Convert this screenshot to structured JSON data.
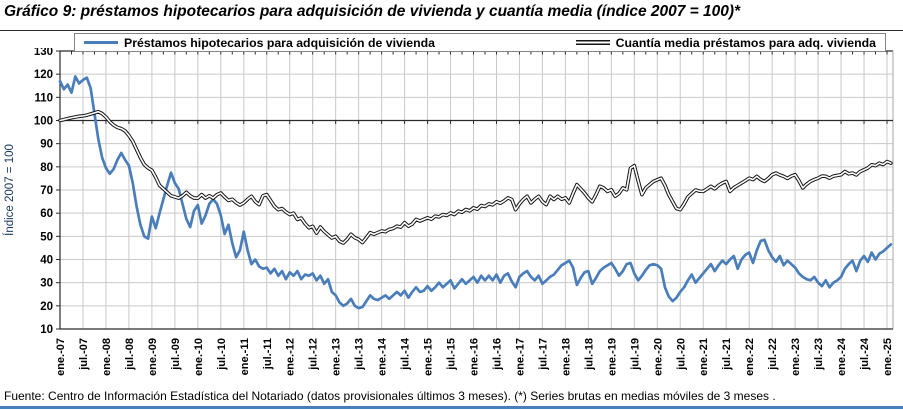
{
  "title": "Gráfico 9: préstamos hipotecarios para adquisición de vivienda y cuantía media (índice 2007 = 100)*",
  "footer": "Fuente: Centro de Información Estadística del Notariado (datos provisionales últimos 3 meses). (*) Series brutas en medias móviles de 3 meses .",
  "y_axis_title": "Índice 2007 = 100",
  "legend": [
    {
      "label": "Préstamos hipotecarios para adquisición de vivienda",
      "style": "solid",
      "color": "#4a7ebb"
    },
    {
      "label": "Cuantía media préstamos para adq. vivienda",
      "style": "double",
      "color": "#141414"
    }
  ],
  "colors": {
    "blue_series": "#4a7ebb",
    "black_series": "#141414",
    "gridline": "#c9c9c9",
    "axis": "#2b2b2b",
    "y_title": "#17375d",
    "bottom_rule": "#4a7ebb",
    "legend_border": "#848484"
  },
  "chart_data": {
    "type": "line",
    "title": "Gráfico 9: préstamos hipotecarios para adquisición de vivienda y cuantía media (índice 2007 = 100)*",
    "x_unit": "month",
    "x_start": "ene-2007",
    "x_end": "feb-2025",
    "x_tick_interval_months": 6,
    "x_tick_labels": [
      "ene.-07",
      "jul.-07",
      "ene.-08",
      "jul.-08",
      "ene.-09",
      "jul.-09",
      "ene.-10",
      "jul.-10",
      "ene.-11",
      "jul.-11",
      "ene.-12",
      "jul.-12",
      "ene.-13",
      "jul.-13",
      "ene.-14",
      "jul.-14",
      "ene.-15",
      "jul.-15",
      "ene.-16",
      "jul.-16",
      "ene.-17",
      "jul.-17",
      "ene.-18",
      "jul.-18",
      "ene.-19",
      "jul.-19",
      "ene.-20",
      "jul.-20",
      "ene.-21",
      "jul.-21",
      "ene.-22",
      "jul.-22",
      "ene.-23",
      "jul.-23",
      "ene.-24",
      "jul.-24",
      "ene.-25"
    ],
    "ylabel": "Índice 2007 = 100",
    "ylim": [
      10,
      130
    ],
    "y_ticks": [
      10,
      20,
      30,
      40,
      50,
      60,
      70,
      80,
      90,
      100,
      110,
      120,
      130
    ],
    "grid": true,
    "legend_position": "top",
    "axis_crosses_at": 100,
    "series": [
      {
        "name": "Préstamos hipotecarios para adquisición de vivienda",
        "color": "#4a7ebb",
        "style": "solid",
        "values": [
          117,
          113.5,
          115.5,
          112,
          119,
          116,
          117.5,
          118.5,
          114,
          103,
          92,
          84,
          79.5,
          77,
          79,
          83,
          86,
          83,
          80.5,
          73,
          63,
          55,
          50,
          49,
          58.5,
          53.5,
          60,
          66,
          72,
          77.5,
          73,
          70.5,
          64,
          57.5,
          54,
          61,
          63.5,
          55.5,
          59,
          64,
          66,
          64,
          59,
          51,
          55,
          47,
          41,
          44,
          52,
          44,
          38,
          40,
          37,
          36,
          36.5,
          34,
          36,
          33,
          35,
          31.5,
          34.5,
          33,
          35,
          31.5,
          33.5,
          33,
          34,
          31,
          33,
          29.5,
          31.5,
          26,
          24.5,
          21.5,
          20,
          21,
          23,
          20,
          19,
          19.5,
          22,
          24.5,
          23,
          22.5,
          23.5,
          24.5,
          23,
          24.5,
          26,
          24.5,
          26.5,
          23.5,
          26,
          28,
          26,
          26.5,
          28.5,
          26.5,
          28,
          30,
          28,
          29.5,
          31,
          27.5,
          29.5,
          31.5,
          29.5,
          31,
          32.5,
          30,
          33,
          31,
          33,
          31,
          33.5,
          30,
          33,
          34,
          30.5,
          28,
          32.5,
          34,
          35,
          32.5,
          31,
          33,
          29.5,
          31,
          32.5,
          33.5,
          35.5,
          37.5,
          38.5,
          39.5,
          36.5,
          29,
          32,
          34.5,
          35,
          29.5,
          32,
          35,
          36.5,
          37.5,
          38.5,
          36,
          33,
          35,
          38,
          38.5,
          34,
          31,
          33,
          35.5,
          37.5,
          38,
          37.5,
          36,
          28,
          24,
          22,
          23.5,
          26,
          28,
          31,
          33.5,
          30,
          32,
          34,
          36,
          38,
          35,
          37.5,
          39.5,
          38,
          40,
          41.5,
          36,
          40,
          42,
          43,
          38.5,
          44,
          48,
          48.5,
          44,
          41,
          39,
          41.5,
          37.5,
          39.5,
          38,
          36.5,
          34,
          32.5,
          31.5,
          31,
          32.5,
          30,
          28.5,
          31,
          28,
          30,
          31,
          32.5,
          36,
          38,
          39.5,
          35,
          39.5,
          41.5,
          39,
          43,
          40,
          42.5,
          43.5,
          45,
          46.5
        ]
      },
      {
        "name": "Cuantía media préstamos para adq. vivienda",
        "color": "#141414",
        "style": "double",
        "values": [
          100,
          100.4,
          100.8,
          101.2,
          101.5,
          101.8,
          102,
          102.3,
          102.8,
          103.3,
          103.8,
          103,
          101.5,
          99.5,
          98,
          97,
          96.5,
          95.5,
          93.5,
          91,
          87.5,
          84,
          81,
          79.5,
          78.5,
          75.5,
          72,
          70.5,
          69,
          67.5,
          67,
          66.5,
          67.5,
          69,
          67.5,
          66.5,
          66.5,
          68,
          66.5,
          67.5,
          66.5,
          68,
          68.7,
          67,
          65.5,
          66,
          64.5,
          63.5,
          64.4,
          66,
          67.3,
          65,
          63.7,
          67.5,
          68,
          65.5,
          63,
          61.5,
          62,
          60.5,
          59.4,
          60,
          57.3,
          57.9,
          55.5,
          53.7,
          54.3,
          51.4,
          54,
          52.1,
          50.7,
          49.3,
          50,
          47.9,
          47.1,
          48.7,
          50.9,
          49.4,
          48.7,
          47.3,
          49.4,
          51.6,
          50.9,
          51.6,
          52.3,
          52,
          53,
          53.4,
          54.4,
          54,
          55.9,
          54.4,
          55.3,
          57.3,
          56.6,
          57.3,
          58,
          57.4,
          58.7,
          58.4,
          59.4,
          59,
          60.1,
          59.4,
          60.9,
          60.4,
          61.6,
          61,
          62.3,
          61.7,
          63.3,
          62.9,
          64,
          63.6,
          64.9,
          64.3,
          65.3,
          66.6,
          65.9,
          61.5,
          64,
          65.9,
          67.3,
          64.4,
          66,
          67.3,
          65,
          63.7,
          67.3,
          65.9,
          67.3,
          66,
          66.6,
          64.4,
          68.5,
          72.3,
          70.5,
          68.7,
          66.5,
          64.9,
          68,
          71.6,
          70.9,
          69.4,
          70.1,
          67.3,
          68.5,
          70.9,
          70.1,
          79.4,
          80.5,
          74,
          68,
          70.9,
          72.3,
          73.7,
          74.4,
          75.1,
          72,
          68,
          65,
          62,
          61.5,
          64,
          67,
          68.5,
          70,
          69.5,
          69.4,
          70.5,
          71.6,
          70.5,
          72,
          73,
          73.7,
          69.4,
          71,
          72,
          73,
          74,
          75.1,
          74.5,
          75.9,
          74.5,
          73.7,
          75,
          76.6,
          77.3,
          76.5,
          75.9,
          75,
          76,
          76.6,
          74,
          70.9,
          72.5,
          73.7,
          74.5,
          75.1,
          76,
          75.9,
          75.1,
          76,
          76.3,
          76.6,
          78,
          77,
          77.3,
          76.5,
          78,
          78.7,
          79.5,
          80.9,
          80.5,
          81.6,
          81,
          82.3,
          81.6
        ]
      }
    ]
  }
}
